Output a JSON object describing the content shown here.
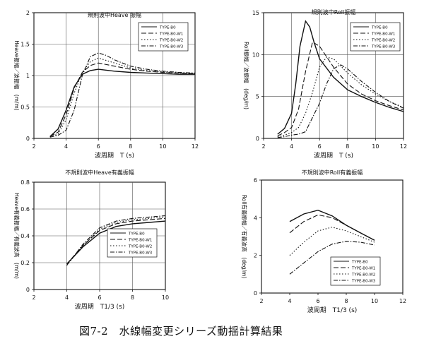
{
  "figure_caption": "図7-2　水線幅変更シリーズ動揺計算結果",
  "colors": {
    "ink": "#111111",
    "paper": "#ffffff",
    "grid": "#555555"
  },
  "chart_data": [
    {
      "type": "line",
      "title": "規則波中Heave 振幅",
      "xlabel": "波周期　T (s)",
      "ylabel": "Heave振幅／波振幅　(m/m)",
      "xlim": [
        2,
        12
      ],
      "ylim": [
        0,
        2
      ],
      "xticks": [
        "2",
        "4",
        "6",
        "8",
        "10",
        "12"
      ],
      "yticks": [
        "0",
        "0.5",
        "1",
        "1.5",
        "2"
      ],
      "grid": true,
      "legend_position": "top-right",
      "series": [
        {
          "name": "TYPE-B0",
          "dash": "solid",
          "x": [
            3,
            3.5,
            4,
            4.5,
            5,
            5.5,
            6,
            7,
            8,
            9,
            10,
            11,
            12
          ],
          "y": [
            0.03,
            0.15,
            0.45,
            0.82,
            1.02,
            1.08,
            1.1,
            1.07,
            1.05,
            1.04,
            1.03,
            1.02,
            1.02
          ]
        },
        {
          "name": "TYPE-B0-W1",
          "dash": "long",
          "x": [
            3,
            3.5,
            4,
            4.5,
            5,
            5.5,
            6,
            7,
            8,
            9,
            10,
            11,
            12
          ],
          "y": [
            0.03,
            0.1,
            0.38,
            0.8,
            1.05,
            1.16,
            1.2,
            1.15,
            1.1,
            1.07,
            1.05,
            1.04,
            1.03
          ]
        },
        {
          "name": "TYPE-B0-W2",
          "dash": "dot",
          "x": [
            3,
            3.5,
            4,
            4.5,
            5,
            5.5,
            6,
            7,
            8,
            9,
            10,
            11,
            12
          ],
          "y": [
            0.02,
            0.07,
            0.3,
            0.72,
            1.05,
            1.22,
            1.28,
            1.2,
            1.12,
            1.08,
            1.06,
            1.04,
            1.03
          ]
        },
        {
          "name": "TYPE-B0-W3",
          "dash": "dashdot",
          "x": [
            3,
            3.5,
            4,
            4.5,
            5,
            5.5,
            6,
            6.5,
            7,
            8,
            9,
            10,
            11,
            12
          ],
          "y": [
            0.02,
            0.05,
            0.13,
            0.45,
            1.0,
            1.3,
            1.36,
            1.32,
            1.25,
            1.15,
            1.1,
            1.07,
            1.05,
            1.04
          ]
        }
      ]
    },
    {
      "type": "line",
      "title": "規則波中Roll振幅",
      "xlabel": "波周期　T (s)",
      "ylabel": "Roll振幅／波振幅　(deg/m)",
      "xlim": [
        2,
        12
      ],
      "ylim": [
        0,
        15
      ],
      "xticks": [
        "2",
        "4",
        "6",
        "8",
        "10",
        "12"
      ],
      "yticks": [
        "0",
        "5",
        "10",
        "15"
      ],
      "grid": true,
      "legend_position": "top-right",
      "series": [
        {
          "name": "TYPE-B0",
          "dash": "solid",
          "x": [
            3,
            3.5,
            4,
            4.3,
            4.6,
            5,
            5.3,
            5.6,
            6,
            7,
            8,
            9,
            10,
            11,
            12
          ],
          "y": [
            0.5,
            1.2,
            3,
            6.5,
            11,
            14,
            13.3,
            11.5,
            9.5,
            7.3,
            5.8,
            5,
            4.3,
            3.7,
            3.2
          ]
        },
        {
          "name": "TYPE-B0-W1",
          "dash": "long",
          "x": [
            3,
            3.5,
            4,
            4.5,
            5,
            5.5,
            6,
            7,
            8,
            9,
            10,
            11,
            12
          ],
          "y": [
            0.3,
            0.7,
            1.3,
            3.5,
            8,
            11.5,
            11,
            8.5,
            6.5,
            5.3,
            4.5,
            3.9,
            3.4
          ]
        },
        {
          "name": "TYPE-B0-W2",
          "dash": "dot",
          "x": [
            3,
            3.5,
            4,
            4.5,
            5,
            5.5,
            6,
            6.5,
            7,
            8,
            9,
            10,
            11,
            12
          ],
          "y": [
            0.2,
            0.4,
            0.7,
            1.3,
            3,
            5.5,
            8.5,
            9.7,
            9.5,
            7.8,
            6.4,
            5.3,
            4.4,
            3.7
          ]
        },
        {
          "name": "TYPE-B0-W3",
          "dash": "dashdot",
          "x": [
            3,
            3.5,
            4,
            4.5,
            5,
            5.5,
            6,
            6.5,
            7,
            7.5,
            8,
            9,
            10,
            11,
            12
          ],
          "y": [
            0.1,
            0.2,
            0.4,
            0.5,
            0.8,
            2.5,
            4.2,
            6.5,
            8.3,
            8.8,
            8.3,
            6.8,
            5.5,
            4.4,
            3.6
          ]
        }
      ]
    },
    {
      "type": "line",
      "title": "不規則波中Heave有義振幅",
      "xlabel": "波周期　T1/3 (s)",
      "ylabel": "Heave有義振幅／有義波高　(m/m)",
      "xlim": [
        2,
        10
      ],
      "ylim": [
        0,
        0.8
      ],
      "xticks": [
        "2",
        "4",
        "6",
        "8",
        "10"
      ],
      "yticks": [
        "0",
        "0.2",
        "0.4",
        "0.6",
        "0.8"
      ],
      "grid": true,
      "legend_position": "bottom-right",
      "series": [
        {
          "name": "TYPE-B0",
          "dash": "solid",
          "x": [
            4,
            5,
            6,
            7,
            8,
            9,
            10
          ],
          "y": [
            0.19,
            0.32,
            0.42,
            0.47,
            0.49,
            0.5,
            0.51
          ]
        },
        {
          "name": "TYPE-B0-W1",
          "dash": "long",
          "x": [
            4,
            5,
            6,
            7,
            8,
            9,
            10
          ],
          "y": [
            0.19,
            0.33,
            0.44,
            0.49,
            0.51,
            0.52,
            0.53
          ]
        },
        {
          "name": "TYPE-B0-W2",
          "dash": "dot",
          "x": [
            4,
            5,
            6,
            7,
            8,
            9,
            10
          ],
          "y": [
            0.18,
            0.33,
            0.45,
            0.5,
            0.52,
            0.53,
            0.54
          ]
        },
        {
          "name": "TYPE-B0-W3",
          "dash": "dashdot",
          "x": [
            4,
            5,
            6,
            7,
            8,
            9,
            10
          ],
          "y": [
            0.18,
            0.34,
            0.46,
            0.51,
            0.53,
            0.54,
            0.55
          ]
        }
      ]
    },
    {
      "type": "line",
      "title": "不規則波中Roll有義振幅",
      "xlabel": "波周期　T1/3 (s)",
      "ylabel": "Roll有義振幅／有義波高　(deg/m)",
      "xlim": [
        2,
        12
      ],
      "ylim": [
        0,
        6
      ],
      "xticks": [
        "2",
        "4",
        "6",
        "8",
        "10",
        "12"
      ],
      "yticks": [
        "0",
        "2",
        "4",
        "6"
      ],
      "grid": false,
      "legend_position": "bottom-right",
      "series": [
        {
          "name": "TYPE-B0",
          "dash": "solid",
          "x": [
            4,
            5,
            6,
            7,
            8,
            9,
            10
          ],
          "y": [
            3.8,
            4.2,
            4.4,
            4.1,
            3.6,
            3.2,
            2.8
          ]
        },
        {
          "name": "TYPE-B0-W1",
          "dash": "long",
          "x": [
            4,
            5,
            6,
            7,
            8,
            9,
            10
          ],
          "y": [
            3.2,
            3.8,
            4.15,
            4.0,
            3.6,
            3.2,
            2.8
          ]
        },
        {
          "name": "TYPE-B0-W2",
          "dash": "dot",
          "x": [
            4,
            5,
            6,
            7,
            8,
            9,
            10
          ],
          "y": [
            2.0,
            2.7,
            3.3,
            3.5,
            3.3,
            3.0,
            2.7
          ]
        },
        {
          "name": "TYPE-B0-W3",
          "dash": "dashdot",
          "x": [
            4,
            5,
            6,
            7,
            8,
            9,
            10
          ],
          "y": [
            1.0,
            1.6,
            2.2,
            2.6,
            2.75,
            2.7,
            2.55
          ]
        }
      ]
    }
  ]
}
